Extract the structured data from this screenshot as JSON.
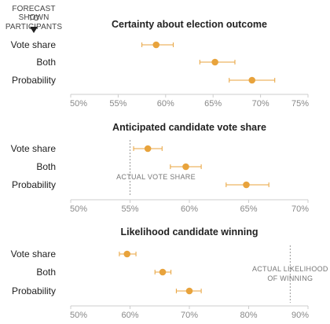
{
  "header": {
    "line1": "FORECAST SHOWN",
    "line2": "TO PARTICIPANTS"
  },
  "colors": {
    "point": "#e8a33c",
    "errorbar": "#e8a33c",
    "reference": "#999999",
    "axis": "#cccccc"
  },
  "chart_data": [
    {
      "type": "scatter",
      "title": "Certainty about election outcome",
      "categories": [
        "Vote share",
        "Both",
        "Probability"
      ],
      "values": [
        59,
        65.2,
        69.1
      ],
      "error_low": [
        57.5,
        63.6,
        66.7
      ],
      "error_high": [
        60.8,
        67.3,
        71.5
      ],
      "xlim": [
        50,
        75
      ],
      "xticks": [
        50,
        55,
        60,
        65,
        70,
        75
      ],
      "xtick_labels": [
        "50%",
        "55%",
        "60%",
        "65%",
        "70%",
        "75%"
      ],
      "reference": null
    },
    {
      "type": "scatter",
      "title": "Anticipated candidate vote share",
      "categories": [
        "Vote share",
        "Both",
        "Probability"
      ],
      "values": [
        56.5,
        59.7,
        64.8
      ],
      "error_low": [
        55.3,
        58.4,
        63.1
      ],
      "error_high": [
        57.7,
        61.0,
        66.7
      ],
      "xlim": [
        50,
        70
      ],
      "xticks": [
        50,
        55,
        60,
        65,
        70
      ],
      "xtick_labels": [
        "50%",
        "55%",
        "60%",
        "65%",
        "70%"
      ],
      "reference": {
        "value": 55,
        "label_lines": [
          "ACTUAL VOTE SHARE"
        ],
        "label_side": "left"
      }
    },
    {
      "type": "scatter",
      "title": "Likelihood candidate winning",
      "categories": [
        "Vote share",
        "Both",
        "Probability"
      ],
      "values": [
        59.5,
        65.5,
        70
      ],
      "error_low": [
        58.2,
        64.2,
        67.8
      ],
      "error_high": [
        61.0,
        66.9,
        72.0
      ],
      "xlim": [
        50,
        90
      ],
      "xticks": [
        50,
        60,
        70,
        80,
        90
      ],
      "xtick_labels": [
        "50%",
        "60%",
        "70%",
        "80%",
        "90%"
      ],
      "reference": {
        "value": 87,
        "label_lines": [
          "ACTUAL LIKELIHOOD",
          "OF WINNING"
        ],
        "label_side": "left"
      }
    }
  ]
}
